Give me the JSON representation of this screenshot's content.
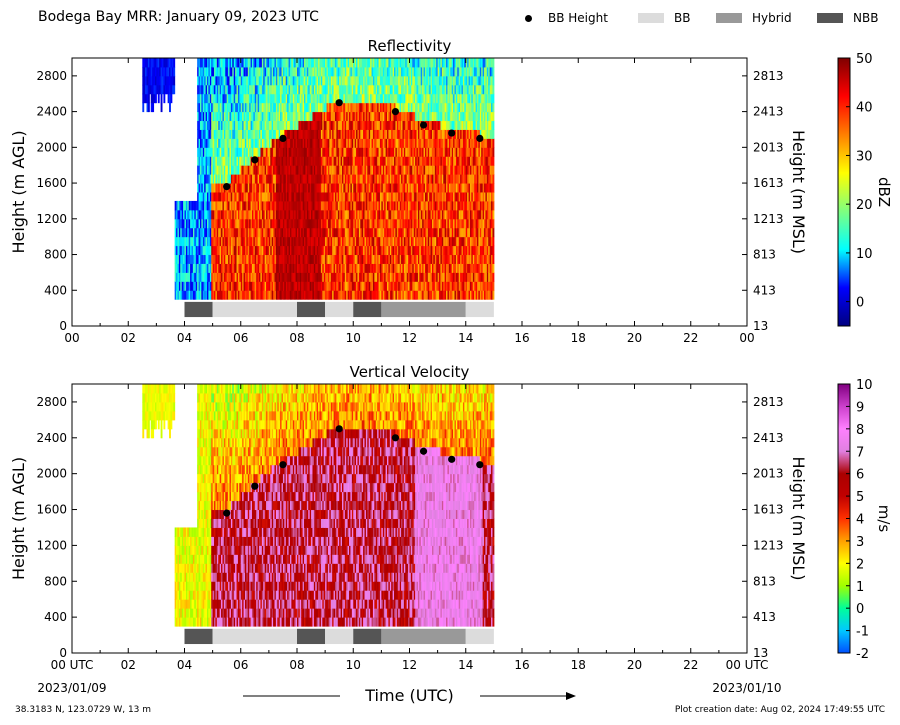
{
  "header": {
    "title": "Bodega Bay MRR:  January 09, 2023 UTC"
  },
  "legend": {
    "items": [
      {
        "label": "BB Height",
        "kind": "dot",
        "color": "#000000"
      },
      {
        "label": "BB",
        "kind": "swatch",
        "color": "#dcdcdc"
      },
      {
        "label": "Hybrid",
        "kind": "swatch",
        "color": "#999999"
      },
      {
        "label": "NBB",
        "kind": "swatch",
        "color": "#555555"
      }
    ]
  },
  "footer": {
    "location": "38.3183 N, 123.0729 W, 13 m",
    "creation": "Plot creation date: Aug 02, 2024 17:49:55 UTC"
  },
  "chart_data": [
    {
      "type": "heatmap",
      "title": "Reflectivity",
      "ylabel": "Height (m AGL)",
      "ylabel_right": "Height (m MSL)",
      "colorbar_label": "dBZ",
      "colorbar_ticks": [
        "50",
        "40",
        "30",
        "20",
        "10",
        "0"
      ],
      "colorbar_range": [
        -5,
        50
      ],
      "colorbar_colors": [
        "#00007f",
        "#0000ff",
        "#00ffff",
        "#7fff7f",
        "#ffff00",
        "#ff7f00",
        "#ff0000",
        "#7f0000"
      ],
      "x_ticks": [
        "00",
        "02",
        "04",
        "06",
        "08",
        "10",
        "12",
        "14",
        "16",
        "18",
        "20",
        "22",
        "00"
      ],
      "y_ticks_left": [
        "0",
        "400",
        "800",
        "1200",
        "1600",
        "2000",
        "2400",
        "2800"
      ],
      "y_ticks_right": [
        "13",
        "413",
        "813",
        "1213",
        "1613",
        "2013",
        "2413",
        "2813"
      ],
      "xlim": [
        0,
        24
      ],
      "ylim": [
        0,
        3000
      ],
      "bb_height": {
        "times": [
          5.5,
          6.5,
          7.5,
          9.5,
          11.5,
          12.5,
          13.5,
          14.5
        ],
        "heights": [
          1560,
          1860,
          2100,
          2500,
          2400,
          2250,
          2160,
          2100
        ]
      },
      "segments": [
        {
          "start": 4.0,
          "end": 5.0,
          "type": "NBB"
        },
        {
          "start": 5.0,
          "end": 8.0,
          "type": "BB"
        },
        {
          "start": 8.0,
          "end": 9.0,
          "type": "NBB"
        },
        {
          "start": 9.0,
          "end": 10.0,
          "type": "BB"
        },
        {
          "start": 10.0,
          "end": 11.0,
          "type": "NBB"
        },
        {
          "start": 11.0,
          "end": 14.0,
          "type": "Hybrid"
        },
        {
          "start": 14.0,
          "end": 15.0,
          "type": "BB"
        }
      ]
    },
    {
      "type": "heatmap",
      "title": "Vertical Velocity",
      "ylabel": "Height (m AGL)",
      "ylabel_right": "Height (m MSL)",
      "xlabel": "Time (UTC)",
      "colorbar_label": "m/s",
      "colorbar_ticks": [
        "10",
        "9",
        "8",
        "7",
        "6",
        "5",
        "4",
        "3",
        "2",
        "1",
        "0",
        "-1",
        "-2"
      ],
      "colorbar_range": [
        -2,
        10
      ],
      "colorbar_colors": [
        "#0050ff",
        "#00c8ff",
        "#00ff99",
        "#a0ff00",
        "#ffff00",
        "#ffa000",
        "#ff3000",
        "#c00000",
        "#aa0000",
        "#e080e0",
        "#ff80ff",
        "#cc40cc",
        "#800080"
      ],
      "x_ticks": [
        "00 UTC",
        "02",
        "04",
        "06",
        "08",
        "10",
        "12",
        "14",
        "16",
        "18",
        "20",
        "22",
        "00 UTC"
      ],
      "x_sub_left": "2023/01/09",
      "x_sub_right": "2023/01/10",
      "y_ticks_left": [
        "0",
        "400",
        "800",
        "1200",
        "1600",
        "2000",
        "2400",
        "2800"
      ],
      "y_ticks_right": [
        "13",
        "413",
        "813",
        "1213",
        "1613",
        "2013",
        "2413",
        "2813"
      ],
      "xlim": [
        0,
        24
      ],
      "ylim": [
        0,
        3000
      ],
      "bb_height": {
        "times": [
          5.5,
          6.5,
          7.5,
          9.5,
          11.5,
          12.5,
          13.5,
          14.5
        ],
        "heights": [
          1560,
          1860,
          2100,
          2500,
          2400,
          2250,
          2160,
          2100
        ]
      },
      "segments": [
        {
          "start": 4.0,
          "end": 5.0,
          "type": "NBB"
        },
        {
          "start": 5.0,
          "end": 8.0,
          "type": "BB"
        },
        {
          "start": 8.0,
          "end": 9.0,
          "type": "NBB"
        },
        {
          "start": 9.0,
          "end": 10.0,
          "type": "BB"
        },
        {
          "start": 10.0,
          "end": 11.0,
          "type": "NBB"
        },
        {
          "start": 11.0,
          "end": 14.0,
          "type": "Hybrid"
        },
        {
          "start": 14.0,
          "end": 15.0,
          "type": "BB"
        }
      ]
    }
  ]
}
